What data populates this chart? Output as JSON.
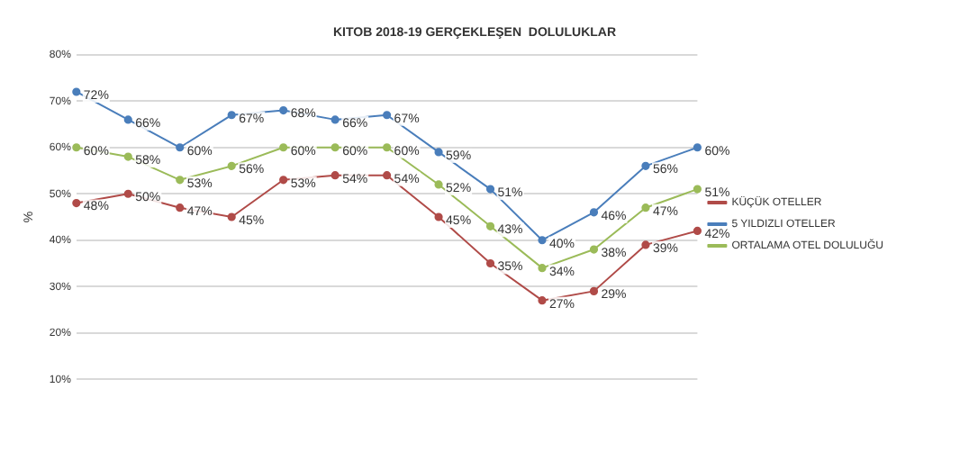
{
  "chart_data": {
    "type": "line",
    "title": "KITOB 2018-19 GERÇEKLEŞEN  DOLULUKLAR",
    "ylabel": "%",
    "categories": [
      null,
      null,
      null,
      null,
      null,
      null,
      null,
      null,
      null,
      null,
      null,
      null,
      null
    ],
    "series": [
      {
        "name": "KÜÇÜK OTELLER",
        "color": "#b04b48",
        "values": [
          48,
          50,
          47,
          45,
          53,
          54,
          54,
          45,
          35,
          27,
          29,
          39,
          42
        ],
        "value_labels": [
          "48%",
          "50%",
          "47%",
          "45%",
          "53%",
          "54%",
          "54%",
          "45%",
          "35%",
          "27%",
          "29%",
          "39%",
          "42%"
        ]
      },
      {
        "name": "5 YILDIZLI OTELLER",
        "color": "#4a7ebb",
        "values": [
          72,
          66,
          60,
          67,
          68,
          66,
          67,
          59,
          51,
          40,
          46,
          56,
          60
        ],
        "value_labels": [
          "72%",
          "66%",
          "60%",
          "67%",
          "68%",
          "66%",
          "67%",
          "59%",
          "51%",
          "40%",
          "46%",
          "56%",
          "60%"
        ]
      },
      {
        "name": "ORTALAMA OTEL DOLULUĞU",
        "color": "#9bbb59",
        "values": [
          60,
          58,
          53,
          56,
          60,
          60,
          60,
          52,
          43,
          34,
          38,
          47,
          51
        ],
        "value_labels": [
          "60%",
          "58%",
          "53%",
          "56%",
          "60%",
          "60%",
          "60%",
          "52%",
          "43%",
          "34%",
          "38%",
          "47%",
          "51%"
        ]
      }
    ],
    "ylim": [
      10,
      80
    ],
    "yticks": [
      {
        "value": 10,
        "label": "10%"
      },
      {
        "value": 20,
        "label": "20%"
      },
      {
        "value": 30,
        "label": "30%"
      },
      {
        "value": 40,
        "label": "40%"
      },
      {
        "value": 50,
        "label": "50%"
      },
      {
        "value": 60,
        "label": "60%"
      },
      {
        "value": 70,
        "label": "70%"
      },
      {
        "value": 80,
        "label": "80%"
      }
    ],
    "grid": "y",
    "legend": "right",
    "marker": "circle",
    "line_style": "solid"
  }
}
